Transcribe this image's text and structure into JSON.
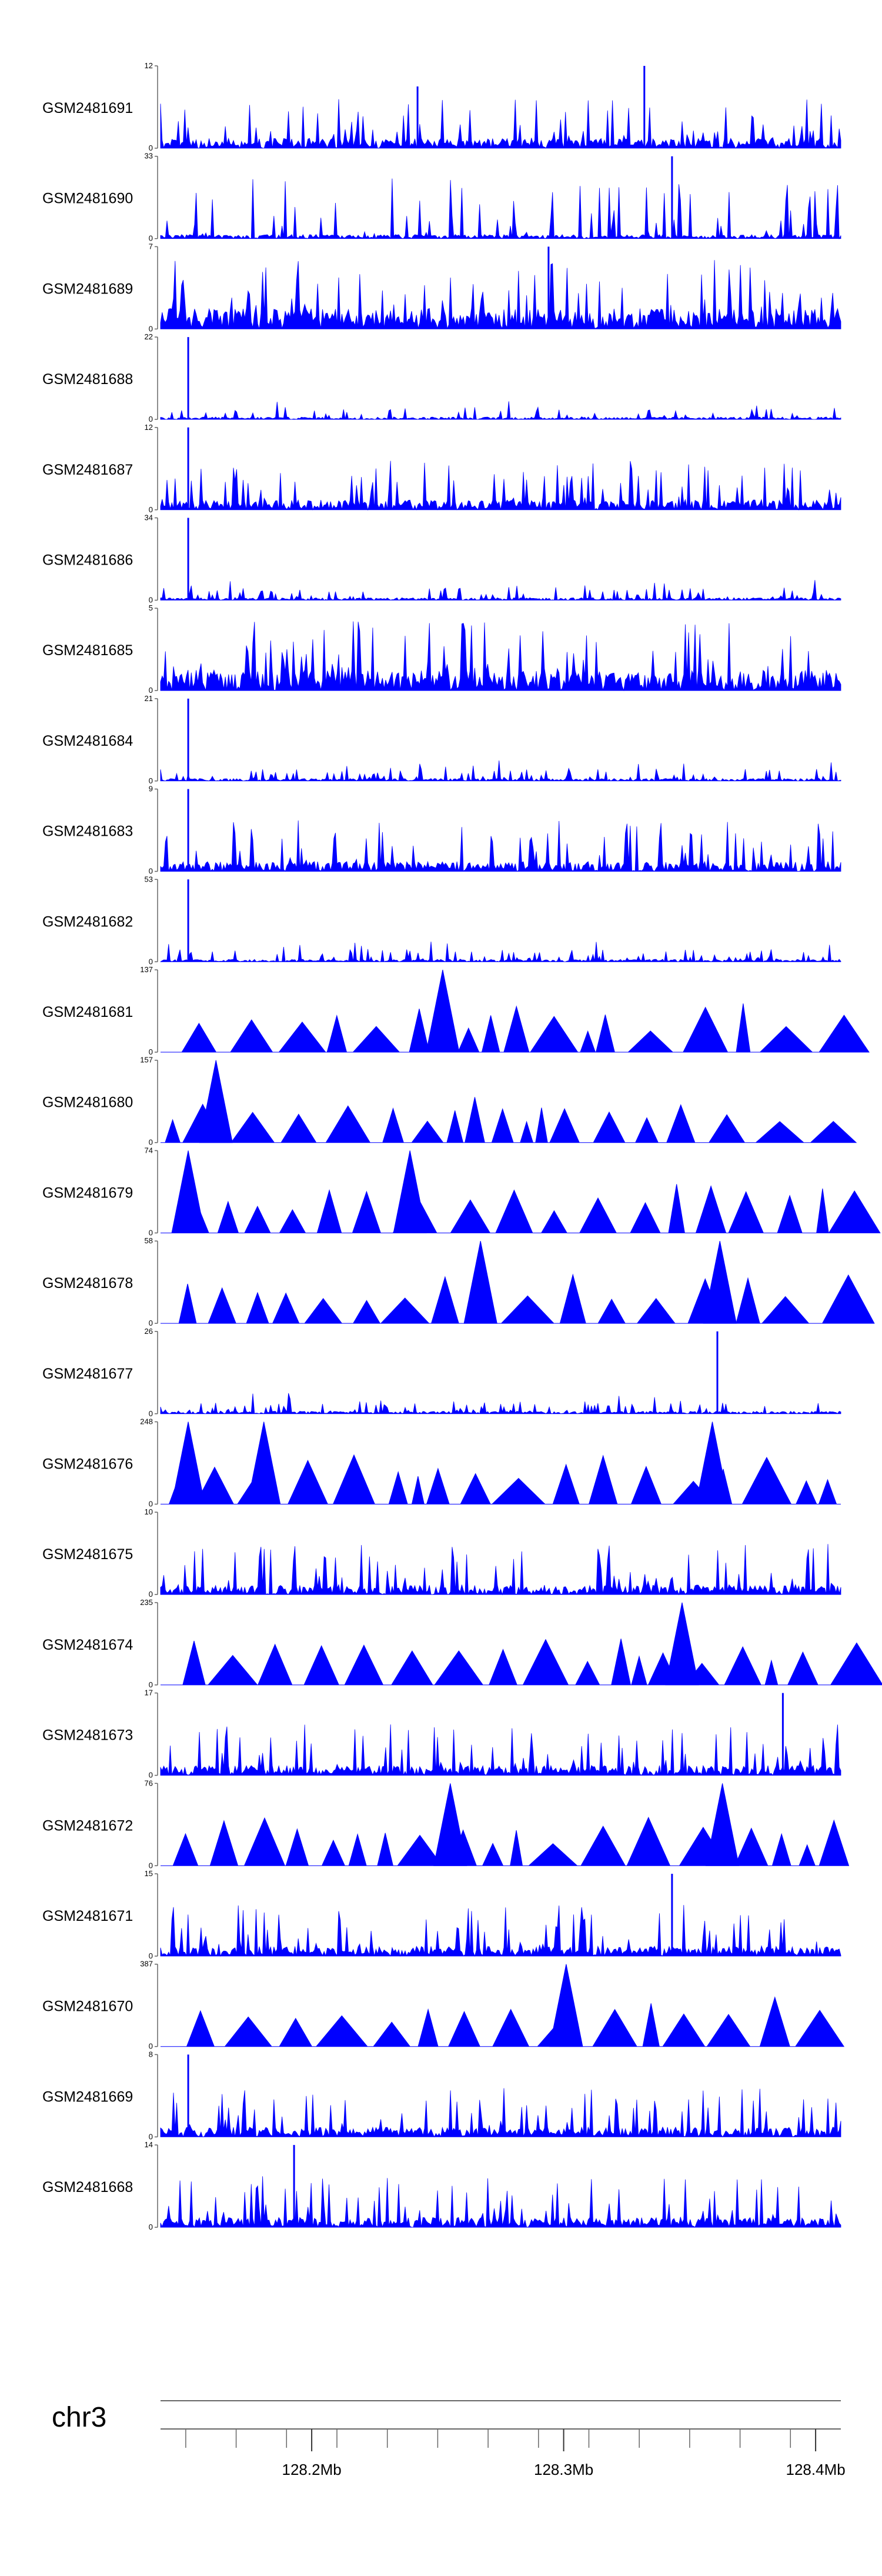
{
  "chart_data": {
    "type": "area",
    "color": "#0000ff",
    "chromosome": "chr3",
    "genome_axis": {
      "xlim": [
        128.14,
        128.41
      ],
      "tick_labels": [
        "128.2Mb",
        "128.3Mb",
        "128.4Mb"
      ],
      "tick_values": [
        128.2,
        128.3,
        128.4
      ],
      "unit": "Mb"
    },
    "tracks": [
      {
        "name": "GSM2481691",
        "ymax": 12,
        "ymin": 0,
        "style": "spiky",
        "peaks": [
          [
            128.242,
            9
          ],
          [
            128.332,
            12
          ]
        ]
      },
      {
        "name": "GSM2481690",
        "ymax": 33,
        "ymin": 0,
        "style": "sparse-spiky",
        "peaks": [
          [
            128.343,
            33
          ]
        ]
      },
      {
        "name": "GSM2481689",
        "ymax": 7,
        "ymin": 0,
        "style": "dense",
        "peaks": [
          [
            128.294,
            7
          ]
        ]
      },
      {
        "name": "GSM2481688",
        "ymax": 22,
        "ymin": 0,
        "style": "flat-spike",
        "peaks": [
          [
            128.151,
            22
          ]
        ]
      },
      {
        "name": "GSM2481687",
        "ymax": 12,
        "ymin": 0,
        "style": "spiky",
        "peaks": [
          [
            128.151,
            12
          ]
        ]
      },
      {
        "name": "GSM2481686",
        "ymax": 34,
        "ymin": 0,
        "style": "flat-spike",
        "peaks": [
          [
            128.151,
            34
          ]
        ]
      },
      {
        "name": "GSM2481685",
        "ymax": 5,
        "ymin": 0,
        "style": "dense",
        "peaks": []
      },
      {
        "name": "GSM2481684",
        "ymax": 21,
        "ymin": 0,
        "style": "flat-spike",
        "peaks": [
          [
            128.151,
            21
          ]
        ]
      },
      {
        "name": "GSM2481683",
        "ymax": 9,
        "ymin": 0,
        "style": "spiky",
        "peaks": [
          [
            128.151,
            9
          ]
        ]
      },
      {
        "name": "GSM2481682",
        "ymax": 53,
        "ymin": 0,
        "style": "flat-spike",
        "peaks": [
          [
            128.151,
            53
          ]
        ]
      },
      {
        "name": "GSM2481681",
        "ymax": 137,
        "ymin": 0,
        "style": "triangles",
        "peaks": [
          [
            128.252,
            137
          ]
        ]
      },
      {
        "name": "GSM2481680",
        "ymax": 157,
        "ymin": 0,
        "style": "triangles",
        "peaks": [
          [
            128.162,
            157
          ]
        ]
      },
      {
        "name": "GSM2481679",
        "ymax": 74,
        "ymin": 0,
        "style": "triangles",
        "peaks": [
          [
            128.151,
            74
          ],
          [
            128.239,
            74
          ]
        ]
      },
      {
        "name": "GSM2481678",
        "ymax": 58,
        "ymin": 0,
        "style": "triangles",
        "peaks": [
          [
            128.267,
            58
          ],
          [
            128.362,
            58
          ]
        ]
      },
      {
        "name": "GSM2481677",
        "ymax": 26,
        "ymin": 0,
        "style": "flat-spike",
        "peaks": [
          [
            128.361,
            26
          ]
        ]
      },
      {
        "name": "GSM2481676",
        "ymax": 248,
        "ymin": 0,
        "style": "triangles",
        "peaks": [
          [
            128.151,
            248
          ],
          [
            128.181,
            248
          ],
          [
            128.359,
            248
          ]
        ]
      },
      {
        "name": "GSM2481675",
        "ymax": 10,
        "ymin": 0,
        "style": "spiky",
        "peaks": []
      },
      {
        "name": "GSM2481674",
        "ymax": 235,
        "ymin": 0,
        "style": "triangles",
        "peaks": [
          [
            128.347,
            235
          ]
        ]
      },
      {
        "name": "GSM2481673",
        "ymax": 17,
        "ymin": 0,
        "style": "spiky",
        "peaks": [
          [
            128.387,
            17
          ]
        ]
      },
      {
        "name": "GSM2481672",
        "ymax": 76,
        "ymin": 0,
        "style": "triangles",
        "peaks": [
          [
            128.255,
            76
          ],
          [
            128.363,
            76
          ]
        ]
      },
      {
        "name": "GSM2481671",
        "ymax": 15,
        "ymin": 0,
        "style": "spiky",
        "peaks": [
          [
            128.343,
            15
          ]
        ]
      },
      {
        "name": "GSM2481670",
        "ymax": 387,
        "ymin": 0,
        "style": "triangles",
        "peaks": [
          [
            128.301,
            387
          ]
        ]
      },
      {
        "name": "GSM2481669",
        "ymax": 8,
        "ymin": 0,
        "style": "spiky",
        "peaks": [
          [
            128.151,
            8
          ]
        ]
      },
      {
        "name": "GSM2481668",
        "ymax": 14,
        "ymin": 0,
        "style": "spiky",
        "peaks": [
          [
            128.193,
            14
          ]
        ]
      }
    ]
  }
}
